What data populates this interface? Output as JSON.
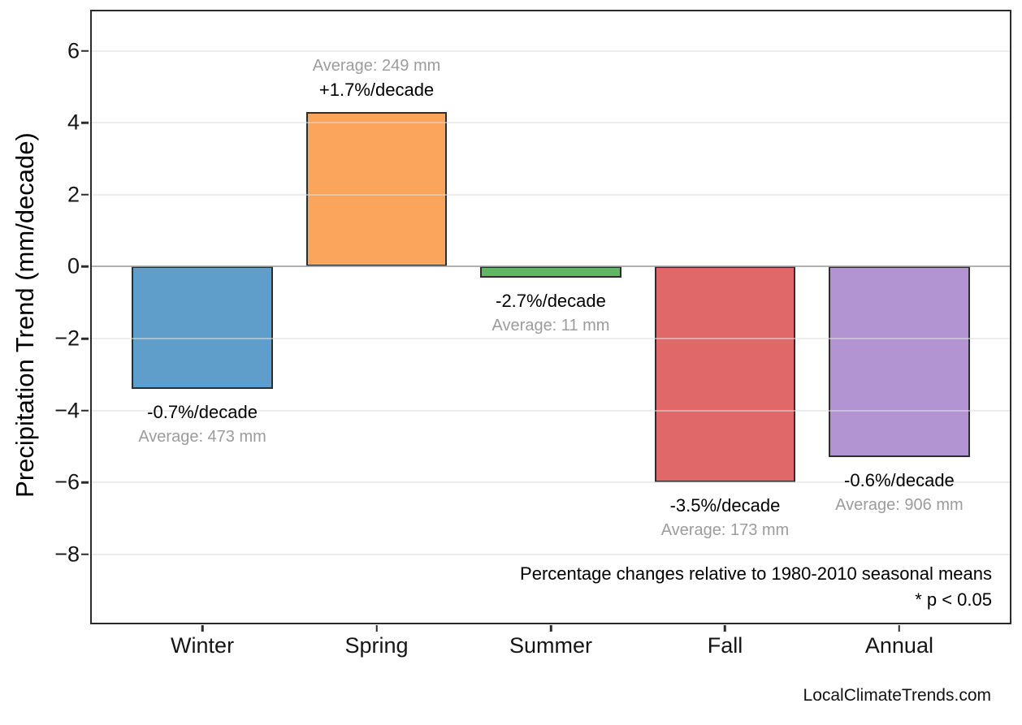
{
  "watermark": "LocalClimateTrends.com",
  "colors": {
    "background": "#ffffff",
    "axis_border": "#2b2b2b",
    "bar_edge": "#2e2e2e",
    "gridline": "#dedede",
    "zero_line": "#7d7d7d",
    "black_text": "#000000",
    "muted_text": "#9c9c9c"
  },
  "chart_data": {
    "type": "bar",
    "title": "",
    "xlabel": "",
    "ylabel": "Precipitation Trend (mm/decade)",
    "categories": [
      "Winter",
      "Spring",
      "Summer",
      "Fall",
      "Annual"
    ],
    "values": [
      -3.4,
      4.3,
      -0.3,
      -6.0,
      -5.3
    ],
    "bars": [
      {
        "category": "Winter",
        "value": -3.4,
        "pct_label": "-0.7%/decade",
        "avg_label": "Average: 473 mm",
        "color": "#5f9eca"
      },
      {
        "category": "Spring",
        "value": 4.3,
        "pct_label": "+1.7%/decade",
        "avg_label": "Average: 249 mm",
        "color": "#fba45c"
      },
      {
        "category": "Summer",
        "value": -0.3,
        "pct_label": "-2.7%/decade",
        "avg_label": "Average: 11 mm",
        "color": "#5fb964"
      },
      {
        "category": "Fall",
        "value": -6.0,
        "pct_label": "-3.5%/decade",
        "avg_label": "Average: 173 mm",
        "color": "#e06868"
      },
      {
        "category": "Annual",
        "value": -5.3,
        "pct_label": "-0.6%/decade",
        "avg_label": "Average: 906 mm",
        "color": "#b294d2"
      }
    ],
    "yticks": [
      6,
      4,
      2,
      0,
      -2,
      -4,
      -6,
      -8
    ],
    "ytick_labels": [
      "6",
      "4",
      "2",
      "0",
      "−2",
      "−4",
      "−6",
      "−8"
    ],
    "ylim": [
      -9.9,
      7.1
    ],
    "xlim": [
      -0.6345,
      4.6345
    ],
    "bar_width": 0.81,
    "grid": "horizontal light-gray gridlines at each y tick, gray line at zero",
    "legend": "none",
    "annotations": [
      "Percentage changes relative to 1980-2010 seasonal means",
      "* p < 0.05"
    ]
  }
}
